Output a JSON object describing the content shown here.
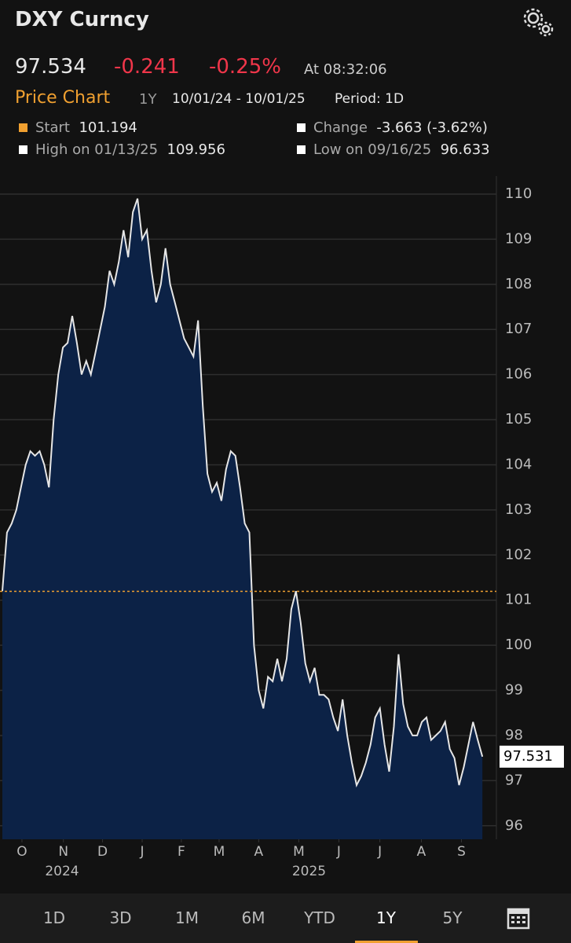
{
  "header": {
    "title": "DXY Curncy",
    "price": 97.534,
    "change": -0.241,
    "change_pct": "-0.25%",
    "time": "At 08:32:06",
    "chart_label": "Price Chart",
    "range": "1Y",
    "dates": "10/01/24 - 10/01/25",
    "period": "Period: 1D"
  },
  "legend": {
    "start_label": "Start",
    "start": 101.194,
    "change_label": "Change",
    "change": "-3.663 (-3.62%)",
    "high_label": "High on 01/13/25",
    "high": 109.956,
    "low_label": "Low on 09/16/25",
    "low": 96.633
  },
  "chart_data": {
    "type": "area",
    "color": "#e6e6e6",
    "fill": "#0c2246",
    "reference_color": "#f0a030",
    "values": [
      101.2,
      102.5,
      102.7,
      103.0,
      103.5,
      104.0,
      104.3,
      104.2,
      104.3,
      104.0,
      103.5,
      105.0,
      106.0,
      106.6,
      106.7,
      107.3,
      106.7,
      106.0,
      106.3,
      106.0,
      106.5,
      107.0,
      107.5,
      108.3,
      108.0,
      108.5,
      109.2,
      108.6,
      109.6,
      109.9,
      109.0,
      109.2,
      108.3,
      107.6,
      108.0,
      108.8,
      108.0,
      107.6,
      107.2,
      106.8,
      106.6,
      106.4,
      107.2,
      105.3,
      103.8,
      103.4,
      103.6,
      103.2,
      103.9,
      104.3,
      104.2,
      103.5,
      102.7,
      102.5,
      100.0,
      99.0,
      98.6,
      99.3,
      99.2,
      99.7,
      99.2,
      99.7,
      100.8,
      101.2,
      100.5,
      99.6,
      99.2,
      99.5,
      98.9,
      98.9,
      98.8,
      98.4,
      98.1,
      98.8,
      98.0,
      97.4,
      96.9,
      97.1,
      97.4,
      97.8,
      98.4,
      98.6,
      97.8,
      97.2,
      98.2,
      99.8,
      98.7,
      98.2,
      98.0,
      98.0,
      98.3,
      98.4,
      97.9,
      98.0,
      98.1,
      98.3,
      97.7,
      97.5,
      96.9,
      97.3,
      97.8,
      98.3,
      97.9,
      97.53
    ],
    "last_label": 97.531,
    "xlim": [
      0,
      106
    ],
    "xticks": [
      {
        "value": 4.2,
        "label": "O"
      },
      {
        "value": 13.1,
        "label": "N"
      },
      {
        "value": 21.5,
        "label": "D"
      },
      {
        "value": 30.0,
        "label": "J"
      },
      {
        "value": 38.4,
        "label": "F"
      },
      {
        "value": 46.5,
        "label": "M"
      },
      {
        "value": 55.0,
        "label": "A"
      },
      {
        "value": 63.6,
        "label": "M"
      },
      {
        "value": 72.2,
        "label": "J"
      },
      {
        "value": 81.0,
        "label": "J"
      },
      {
        "value": 89.9,
        "label": "A"
      },
      {
        "value": 98.5,
        "label": "S"
      }
    ],
    "year_ticks": [
      {
        "value": 12.8,
        "label": "2024"
      },
      {
        "value": 65.8,
        "label": "2025"
      }
    ],
    "ylim": [
      95.7,
      110.4
    ],
    "yticks": [
      96,
      97,
      98,
      99,
      100,
      101,
      102,
      103,
      104,
      105,
      106,
      107,
      108,
      109,
      110
    ],
    "grid": true
  },
  "range_buttons": [
    "1D",
    "3D",
    "1M",
    "6M",
    "YTD",
    "1Y",
    "5Y"
  ],
  "selected_range": 5
}
